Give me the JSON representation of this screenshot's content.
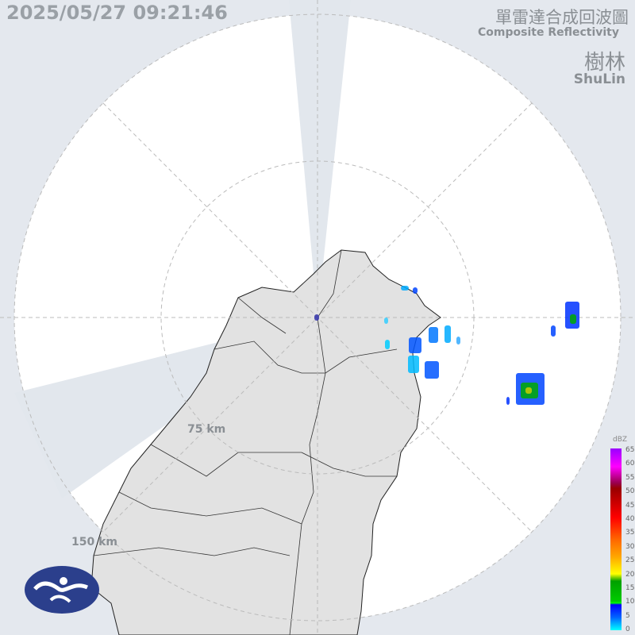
{
  "timestamp": "2025/05/27 09:21:46",
  "title_zh": "單雷達合成回波圖",
  "title_en": "Composite Reflectivity",
  "site_zh": "樹林",
  "site_en": "ShuLin",
  "range_rings": [
    {
      "label": "75 km"
    },
    {
      "label": "150 km"
    }
  ],
  "legend": {
    "unit": "dBZ",
    "ticks": [
      "65",
      "60",
      "55",
      "50",
      "45",
      "40",
      "35",
      "30",
      "25",
      "20",
      "15",
      "10",
      "5",
      "0"
    ]
  },
  "colors": {
    "background": "#e4e8ee",
    "coverage": "#ffffff",
    "land": "#e2e2e2",
    "blocked": "#e0e5ec"
  },
  "logo": "cwa-logo"
}
